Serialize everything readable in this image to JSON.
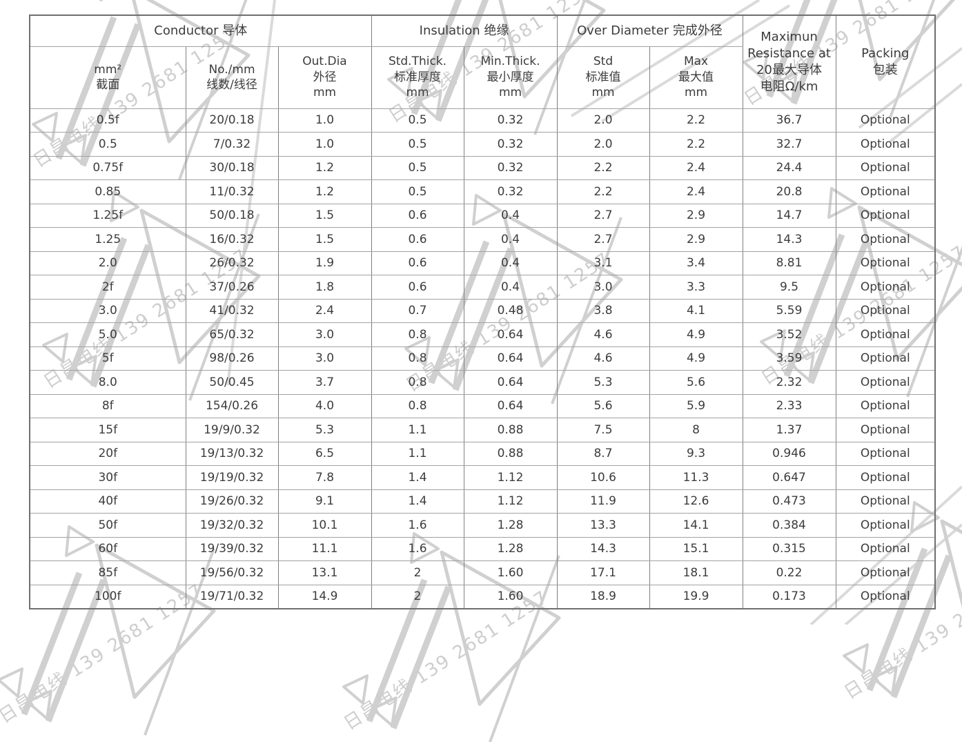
{
  "watermark": {
    "text": "日昌电线 139 2681 1257",
    "color": "#d0d0d0"
  },
  "table": {
    "groups": [
      {
        "label": "Conductor 导体",
        "span": 3
      },
      {
        "label": "Insulation 绝缘",
        "span": 2
      },
      {
        "label": "Over Diameter 完成外径",
        "span": 2
      }
    ],
    "columns": [
      "mm²\n截面",
      "No./mm\n线数/线径",
      "Out.Dia\n外径\nmm",
      "Std.Thick.\n标准厚度\nmm",
      "Min.Thick.\n最小厚度\nmm",
      "Std\n标准值\nmm",
      "Max\n最大值\nmm",
      "Maximun\nResistance at\n20最大导体\n电阻Ω/km",
      "Packing\n包装"
    ],
    "rows": [
      [
        "0.5f",
        "20/0.18",
        "1.0",
        "0.5",
        "0.32",
        "2.0",
        "2.2",
        "36.7",
        "Optional"
      ],
      [
        "0.5",
        "7/0.32",
        "1.0",
        "0.5",
        "0.32",
        "2.0",
        "2.2",
        "32.7",
        "Optional"
      ],
      [
        "0.75f",
        "30/0.18",
        "1.2",
        "0.5",
        "0.32",
        "2.2",
        "2.4",
        "24.4",
        "Optional"
      ],
      [
        "0.85",
        "11/0.32",
        "1.2",
        "0.5",
        "0.32",
        "2.2",
        "2.4",
        "20.8",
        "Optional"
      ],
      [
        "1.25f",
        "50/0.18",
        "1.5",
        "0.6",
        "0.4",
        "2.7",
        "2.9",
        "14.7",
        "Optional"
      ],
      [
        "1.25",
        "16/0.32",
        "1.5",
        "0.6",
        "0.4",
        "2.7",
        "2.9",
        "14.3",
        "Optional"
      ],
      [
        "2.0",
        "26/0.32",
        "1.9",
        "0.6",
        "0.4",
        "3.1",
        "3.4",
        "8.81",
        "Optional"
      ],
      [
        "2f",
        "37/0.26",
        "1.8",
        "0.6",
        "0.4",
        "3.0",
        "3.3",
        "9.5",
        "Optional"
      ],
      [
        "3.0",
        "41/0.32",
        "2.4",
        "0.7",
        "0.48",
        "3.8",
        "4.1",
        "5.59",
        "Optional"
      ],
      [
        "5.0",
        "65/0.32",
        "3.0",
        "0.8",
        "0.64",
        "4.6",
        "4.9",
        "3.52",
        "Optional"
      ],
      [
        "5f",
        "98/0.26",
        "3.0",
        "0.8",
        "0.64",
        "4.6",
        "4.9",
        "3.59",
        "Optional"
      ],
      [
        "8.0",
        "50/0.45",
        "3.7",
        "0.8",
        "0.64",
        "5.3",
        "5.6",
        "2.32",
        "Optional"
      ],
      [
        "8f",
        "154/0.26",
        "4.0",
        "0.8",
        "0.64",
        "5.6",
        "5.9",
        "2.33",
        "Optional"
      ],
      [
        "15f",
        "19/9/0.32",
        "5.3",
        "1.1",
        "0.88",
        "7.5",
        "8",
        "1.37",
        "Optional"
      ],
      [
        "20f",
        "19/13/0.32",
        "6.5",
        "1.1",
        "0.88",
        "8.7",
        "9.3",
        "0.946",
        "Optional"
      ],
      [
        "30f",
        "19/19/0.32",
        "7.8",
        "1.4",
        "1.12",
        "10.6",
        "11.3",
        "0.647",
        "Optional"
      ],
      [
        "40f",
        "19/26/0.32",
        "9.1",
        "1.4",
        "1.12",
        "11.9",
        "12.6",
        "0.473",
        "Optional"
      ],
      [
        "50f",
        "19/32/0.32",
        "10.1",
        "1.6",
        "1.28",
        "13.3",
        "14.1",
        "0.384",
        "Optional"
      ],
      [
        "60f",
        "19/39/0.32",
        "11.1",
        "1.6",
        "1.28",
        "14.3",
        "15.1",
        "0.315",
        "Optional"
      ],
      [
        "85f",
        "19/56/0.32",
        "13.1",
        "2",
        "1.60",
        "17.1",
        "18.1",
        "0.22",
        "Optional"
      ],
      [
        "100f",
        "19/71/0.32",
        "14.9",
        "2",
        "1.60",
        "18.9",
        "19.9",
        "0.173",
        "Optional"
      ]
    ]
  }
}
